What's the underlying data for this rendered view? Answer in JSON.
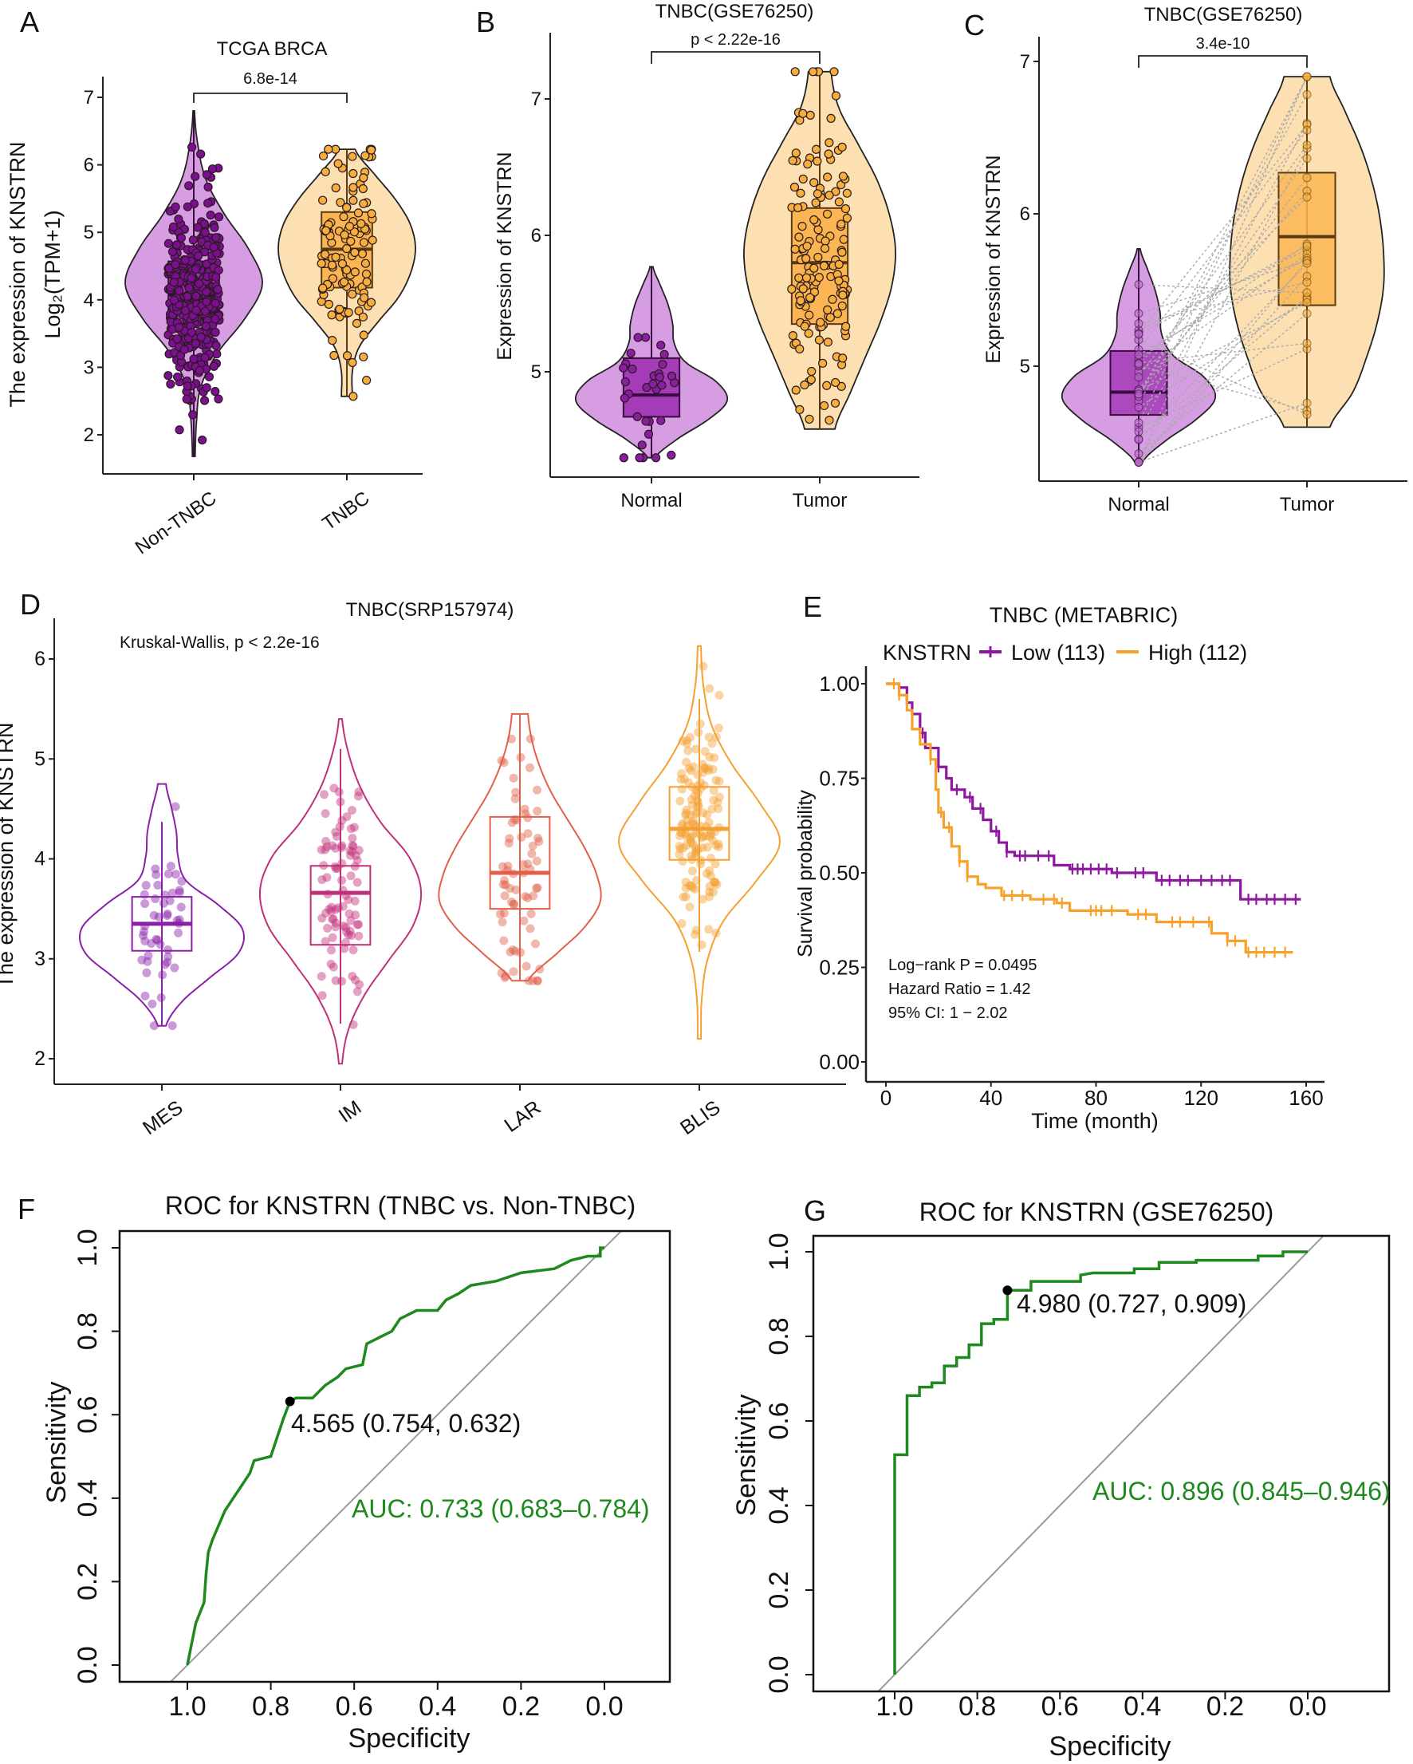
{
  "panel_labels": [
    "A",
    "B",
    "C",
    "D",
    "E",
    "F",
    "G"
  ],
  "chart_data": [
    {
      "panel": "A",
      "type": "violin",
      "title": "TCGA BRCA",
      "ylabel": [
        "The expression of KNSTRN",
        "Log₂(TPM+1)"
      ],
      "yticks": [
        "2",
        "3",
        "4",
        "5",
        "6",
        "7"
      ],
      "categories": [
        "Non-TNBC",
        "TNBC"
      ],
      "comparison": "6.8e-14",
      "groups": [
        {
          "name": "Non-TNBC",
          "min": 1.68,
          "max": 6.8,
          "q1": 3.65,
          "median": 4.07,
          "q3": 4.57,
          "whisker_low": 1.68,
          "whisker_high": 6.8,
          "density": [
            0.02,
            0.04,
            0.1,
            0.35,
            0.75,
            1.0,
            0.8,
            0.45,
            0.18,
            0.06,
            0.01
          ],
          "violin_color": "#d79de2",
          "box_color": "#a63bb8",
          "point_color": "#7b0f90",
          "line_color": "#3a0a40"
        },
        {
          "name": "TNBC",
          "min": 2.57,
          "max": 6.23,
          "q1": 4.18,
          "median": 4.75,
          "q3": 5.3,
          "whisker_low": 2.57,
          "whisker_high": 6.23,
          "density": [
            0.08,
            0.08,
            0.18,
            0.45,
            0.75,
            0.93,
            1.0,
            0.92,
            0.7,
            0.4,
            0.12
          ],
          "violin_color": "#fde0b2",
          "box_color": "#fbb552",
          "point_color": "#f6ae3c",
          "line_color": "#5a3a10"
        }
      ]
    },
    {
      "panel": "B",
      "type": "violin",
      "title": "TNBC(GSE76250)",
      "ylabel": [
        "Expression of KNSTRN"
      ],
      "yticks": [
        "5",
        "6",
        "7"
      ],
      "categories": [
        "Normal",
        "Tumor"
      ],
      "comparison": "p < 2.22e-16",
      "groups": [
        {
          "name": "Normal",
          "min": 4.37,
          "max": 5.77,
          "q1": 4.67,
          "median": 4.83,
          "q3": 5.1,
          "whisker_low": 4.37,
          "whisker_high": 5.77,
          "density": [
            0.05,
            0.35,
            0.75,
            1.0,
            0.85,
            0.45,
            0.3,
            0.28,
            0.22,
            0.12,
            0.02
          ],
          "violin_color": "#d79de2",
          "box_color": "#a63bb8",
          "point_color": "#8a1ea0",
          "line_color": "#3a0a40"
        },
        {
          "name": "Tumor",
          "min": 4.58,
          "max": 7.2,
          "q1": 5.35,
          "median": 5.8,
          "q3": 6.2,
          "whisker_low": 4.58,
          "whisker_high": 7.2,
          "density": [
            0.2,
            0.4,
            0.6,
            0.8,
            0.95,
            1.0,
            0.92,
            0.75,
            0.5,
            0.25,
            0.15
          ],
          "violin_color": "#fde0b2",
          "box_color": "#fbb552",
          "point_color": "#f6ae3c",
          "line_color": "#5a3a10"
        }
      ]
    },
    {
      "panel": "C",
      "type": "violin",
      "paired": true,
      "title": "TNBC(GSE76250)",
      "ylabel": [
        "Expression of KNSTRN"
      ],
      "yticks": [
        "5",
        "6",
        "7"
      ],
      "categories": [
        "Normal",
        "Tumor"
      ],
      "comparison": "3.4e-10",
      "groups": [
        {
          "name": "Normal",
          "min": 4.37,
          "max": 5.77,
          "q1": 4.68,
          "median": 4.83,
          "q3": 5.1,
          "whisker_low": 4.37,
          "whisker_high": 5.77,
          "density": [
            0.05,
            0.35,
            0.75,
            1.0,
            0.85,
            0.45,
            0.3,
            0.28,
            0.22,
            0.12,
            0.02
          ],
          "violin_color": "#d79de2",
          "box_color": "#a63bb8",
          "point_color": "#b864c8",
          "line_color": "#3a0a40"
        },
        {
          "name": "Tumor",
          "min": 4.6,
          "max": 6.9,
          "q1": 5.4,
          "median": 5.85,
          "q3": 6.27,
          "whisker_low": 4.6,
          "whisker_high": 6.9,
          "density": [
            0.3,
            0.6,
            0.78,
            0.92,
            1.0,
            1.0,
            0.95,
            0.85,
            0.7,
            0.5,
            0.3
          ],
          "violin_color": "#fde0b2",
          "box_color": "#fbb552",
          "point_color": "#f6ae3c",
          "line_color": "#5a3a10"
        }
      ]
    },
    {
      "panel": "D",
      "type": "violin",
      "title": "TNBC(SRP157974)",
      "annotation": "Kruskal-Wallis, p < 2.2e-16",
      "ylabel": [
        "The expression of KNSTRN"
      ],
      "yticks": [
        "2",
        "3",
        "4",
        "5",
        "6"
      ],
      "categories": [
        "MES",
        "IM",
        "LAR",
        "BLIS"
      ],
      "groups": [
        {
          "name": "MES",
          "min": 2.33,
          "max": 4.75,
          "q1": 3.08,
          "median": 3.35,
          "q3": 3.62,
          "whisker_low": 2.33,
          "whisker_high": 4.37,
          "density": [
            0.05,
            0.25,
            0.6,
            0.95,
            1.0,
            0.7,
            0.3,
            0.2,
            0.18,
            0.12,
            0.05
          ],
          "color": "#8a1fa8"
        },
        {
          "name": "IM",
          "min": 1.95,
          "max": 5.4,
          "q1": 3.14,
          "median": 3.66,
          "q3": 3.93,
          "whisker_low": 2.35,
          "whisker_high": 5.1,
          "density": [
            0.02,
            0.1,
            0.3,
            0.6,
            0.9,
            1.0,
            0.85,
            0.5,
            0.25,
            0.1,
            0.02
          ],
          "color": "#c0307a"
        },
        {
          "name": "LAR",
          "min": 2.78,
          "max": 5.45,
          "q1": 3.5,
          "median": 3.86,
          "q3": 4.42,
          "whisker_low": 2.78,
          "whisker_high": 5.45,
          "density": [
            0.1,
            0.45,
            0.8,
            1.0,
            0.95,
            0.8,
            0.6,
            0.4,
            0.25,
            0.15,
            0.1
          ],
          "color": "#e0604a"
        },
        {
          "name": "BLIS",
          "min": 2.2,
          "max": 6.13,
          "q1": 3.99,
          "median": 4.3,
          "q3": 4.72,
          "whisker_low": 3.07,
          "whisker_high": 5.6,
          "density": [
            0.02,
            0.03,
            0.1,
            0.3,
            0.7,
            1.0,
            0.75,
            0.4,
            0.15,
            0.05,
            0.02
          ],
          "color": "#f5a030"
        }
      ]
    },
    {
      "panel": "E",
      "type": "line",
      "subtype": "kaplan-meier",
      "title": "TNBC (METABRIC)",
      "legend_title": "KNSTRN",
      "legend_position": "top",
      "xlabel": "Time (month)",
      "ylabel": "Survival probability",
      "xlim": [
        0,
        160
      ],
      "ylim": [
        0,
        1
      ],
      "xticks": [
        "0",
        "40",
        "80",
        "120",
        "160"
      ],
      "yticks": [
        "0.00",
        "0.25",
        "0.50",
        "0.75",
        "1.00"
      ],
      "annotations": [
        "Log−rank P = 0.0495",
        "Hazard Ratio = 1.42",
        "95% CI: 1 − 2.02"
      ],
      "series": [
        {
          "name": "Low (113)",
          "color": "#8e16a0",
          "steps": [
            [
              0,
              1
            ],
            [
              5,
              0.99
            ],
            [
              8,
              0.95
            ],
            [
              10,
              0.92
            ],
            [
              13,
              0.87
            ],
            [
              15,
              0.83
            ],
            [
              20,
              0.78
            ],
            [
              23,
              0.75
            ],
            [
              25,
              0.72
            ],
            [
              30,
              0.7
            ],
            [
              33,
              0.67
            ],
            [
              37,
              0.64
            ],
            [
              40,
              0.61
            ],
            [
              43,
              0.58
            ],
            [
              46,
              0.555
            ],
            [
              49,
              0.545
            ],
            [
              64,
              0.52
            ],
            [
              70,
              0.51
            ],
            [
              86,
              0.5
            ],
            [
              103,
              0.48
            ],
            [
              135,
              0.43
            ],
            [
              158,
              0.43
            ]
          ],
          "censored": [
            8,
            14,
            20,
            27,
            32,
            36,
            42,
            46,
            51,
            53,
            58,
            62,
            71,
            73,
            75,
            78,
            81,
            84,
            88,
            95,
            98,
            105,
            108,
            112,
            115,
            120,
            124,
            128,
            131,
            138,
            141,
            145,
            148,
            152,
            156
          ]
        },
        {
          "name": "High (112)",
          "color": "#f7a12a",
          "steps": [
            [
              0,
              1
            ],
            [
              5,
              0.97
            ],
            [
              8,
              0.93
            ],
            [
              10,
              0.88
            ],
            [
              13,
              0.84
            ],
            [
              17,
              0.8
            ],
            [
              19,
              0.72
            ],
            [
              20,
              0.66
            ],
            [
              22,
              0.62
            ],
            [
              25,
              0.57
            ],
            [
              28,
              0.53
            ],
            [
              31,
              0.49
            ],
            [
              35,
              0.47
            ],
            [
              38,
              0.46
            ],
            [
              44,
              0.44
            ],
            [
              55,
              0.43
            ],
            [
              65,
              0.42
            ],
            [
              70,
              0.4
            ],
            [
              92,
              0.39
            ],
            [
              103,
              0.37
            ],
            [
              124,
              0.34
            ],
            [
              130,
              0.32
            ],
            [
              137,
              0.29
            ],
            [
              155,
              0.29
            ]
          ],
          "censored": [
            3,
            5,
            17,
            21,
            24,
            28,
            31,
            45,
            48,
            52,
            60,
            64,
            67,
            78,
            80,
            82,
            86,
            96,
            99,
            109,
            112,
            117,
            123,
            130,
            133,
            138,
            141,
            144,
            148,
            152
          ]
        }
      ]
    },
    {
      "panel": "F",
      "type": "line",
      "subtype": "roc",
      "title": "ROC for KNSTRN (TNBC vs. Non-TNBC)",
      "xlabel": "Specificity",
      "ylabel": "Sensitivity",
      "xlim": [
        1,
        0
      ],
      "ylim": [
        0,
        1
      ],
      "xticks": [
        "1.0",
        "0.8",
        "0.6",
        "0.4",
        "0.2",
        "0.0"
      ],
      "yticks": [
        "0.0",
        "0.2",
        "0.4",
        "0.6",
        "0.8",
        "1.0"
      ],
      "color": "#1e8a1e",
      "auc_label": "AUC: 0.733 (0.683–0.784)",
      "best_threshold": {
        "label": "4.565 (0.754, 0.632)",
        "specificity": 0.754,
        "sensitivity": 0.632
      },
      "points": [
        [
          1,
          0
        ],
        [
          0.99,
          0.05
        ],
        [
          0.98,
          0.1
        ],
        [
          0.96,
          0.15
        ],
        [
          0.955,
          0.22
        ],
        [
          0.95,
          0.27
        ],
        [
          0.94,
          0.3
        ],
        [
          0.91,
          0.37
        ],
        [
          0.89,
          0.4
        ],
        [
          0.87,
          0.43
        ],
        [
          0.85,
          0.46
        ],
        [
          0.84,
          0.49
        ],
        [
          0.8,
          0.5
        ],
        [
          0.79,
          0.53
        ],
        [
          0.77,
          0.59
        ],
        [
          0.754,
          0.632
        ],
        [
          0.74,
          0.64
        ],
        [
          0.7,
          0.64
        ],
        [
          0.67,
          0.67
        ],
        [
          0.64,
          0.69
        ],
        [
          0.62,
          0.71
        ],
        [
          0.58,
          0.72
        ],
        [
          0.57,
          0.77
        ],
        [
          0.53,
          0.79
        ],
        [
          0.51,
          0.8
        ],
        [
          0.49,
          0.83
        ],
        [
          0.45,
          0.85
        ],
        [
          0.4,
          0.85
        ],
        [
          0.38,
          0.875
        ],
        [
          0.35,
          0.89
        ],
        [
          0.32,
          0.91
        ],
        [
          0.26,
          0.92
        ],
        [
          0.2,
          0.94
        ],
        [
          0.12,
          0.95
        ],
        [
          0.08,
          0.97
        ],
        [
          0.04,
          0.98
        ],
        [
          0.01,
          0.98
        ],
        [
          0.01,
          1
        ],
        [
          0,
          1
        ]
      ]
    },
    {
      "panel": "G",
      "type": "line",
      "subtype": "roc",
      "title": "ROC for KNSTRN (GSE76250)",
      "xlabel": "Specificity",
      "ylabel": "Sensitivity",
      "xlim": [
        1,
        0
      ],
      "ylim": [
        0,
        1
      ],
      "xticks": [
        "1.0",
        "0.8",
        "0.6",
        "0.4",
        "0.2",
        "0.0"
      ],
      "yticks": [
        "0.0",
        "0.2",
        "0.4",
        "0.6",
        "0.8",
        "1.0"
      ],
      "color": "#1e8a1e",
      "auc_label": "AUC: 0.896 (0.845–0.946)",
      "best_threshold": {
        "label": "4.980 (0.727, 0.909)",
        "specificity": 0.727,
        "sensitivity": 0.909
      },
      "points": [
        [
          1,
          0
        ],
        [
          1,
          0.52
        ],
        [
          0.97,
          0.52
        ],
        [
          0.97,
          0.66
        ],
        [
          0.94,
          0.66
        ],
        [
          0.94,
          0.68
        ],
        [
          0.91,
          0.68
        ],
        [
          0.91,
          0.69
        ],
        [
          0.88,
          0.69
        ],
        [
          0.88,
          0.73
        ],
        [
          0.85,
          0.73
        ],
        [
          0.85,
          0.75
        ],
        [
          0.82,
          0.75
        ],
        [
          0.82,
          0.78
        ],
        [
          0.79,
          0.78
        ],
        [
          0.79,
          0.83
        ],
        [
          0.76,
          0.83
        ],
        [
          0.76,
          0.84
        ],
        [
          0.727,
          0.84
        ],
        [
          0.727,
          0.909
        ],
        [
          0.67,
          0.909
        ],
        [
          0.67,
          0.93
        ],
        [
          0.55,
          0.93
        ],
        [
          0.55,
          0.945
        ],
        [
          0.52,
          0.95
        ],
        [
          0.42,
          0.95
        ],
        [
          0.42,
          0.96
        ],
        [
          0.36,
          0.96
        ],
        [
          0.36,
          0.975
        ],
        [
          0.27,
          0.975
        ],
        [
          0.27,
          0.98
        ],
        [
          0.12,
          0.98
        ],
        [
          0.12,
          0.99
        ],
        [
          0.06,
          0.99
        ],
        [
          0.06,
          1
        ],
        [
          0,
          1
        ]
      ]
    }
  ]
}
